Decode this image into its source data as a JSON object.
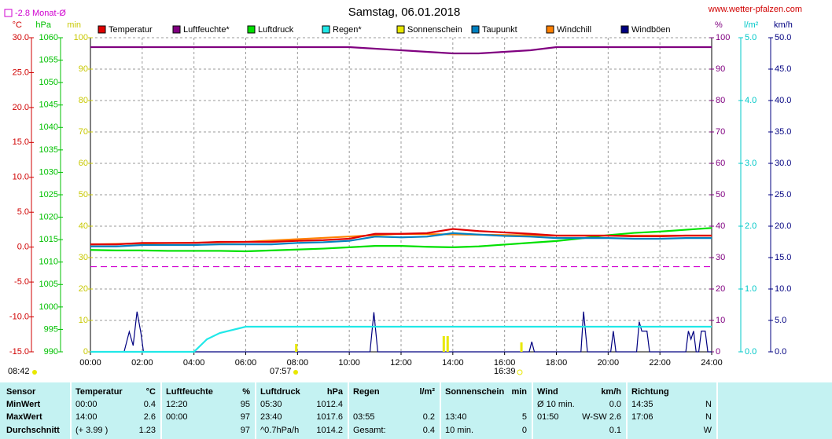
{
  "chart_data": {
    "type": "line",
    "title": "Samstag, 06.01.2018",
    "source": "www.wetter-pfalzen.com",
    "reference_line": {
      "label": "-2.8 Monat-Ø",
      "value": -2.8,
      "axis": "°C",
      "color": "#d000d0"
    },
    "xlim": [
      0,
      24
    ],
    "xticks": [
      {
        "value": 0,
        "label": "00:00"
      },
      {
        "value": 2,
        "label": "02:00"
      },
      {
        "value": 4,
        "label": "04:00"
      },
      {
        "value": 6,
        "label": "06:00"
      },
      {
        "value": 8,
        "label": "08:00"
      },
      {
        "value": 10,
        "label": "10:00"
      },
      {
        "value": 12,
        "label": "12:00"
      },
      {
        "value": 14,
        "label": "14:00"
      },
      {
        "value": 16,
        "label": "16:00"
      },
      {
        "value": 18,
        "label": "18:00"
      },
      {
        "value": 20,
        "label": "20:00"
      },
      {
        "value": 22,
        "label": "22:00"
      },
      {
        "value": 24,
        "label": "24:00"
      }
    ],
    "grid": true,
    "grid_axis": "%",
    "sun_times": [
      "08:42",
      "07:57",
      "16:39"
    ],
    "axes": [
      {
        "unit": "°C",
        "color": "#d00000",
        "ylim": [
          -15,
          30
        ],
        "yticks": [
          {
            "value": -15,
            "label": "-15.0"
          },
          {
            "value": -10,
            "label": "-10.0"
          },
          {
            "value": -5,
            "label": "-5.0"
          },
          {
            "value": 0,
            "label": "0.0"
          },
          {
            "value": 5,
            "label": "5.0"
          },
          {
            "value": 10,
            "label": "10.0"
          },
          {
            "value": 15,
            "label": "15.0"
          },
          {
            "value": 20,
            "label": "20.0"
          },
          {
            "value": 25,
            "label": "25.0"
          },
          {
            "value": 30,
            "label": "30.0"
          }
        ]
      },
      {
        "unit": "hPa",
        "color": "#00c000",
        "ylim": [
          990,
          1060
        ],
        "yticks": [
          990,
          995,
          1000,
          1005,
          1010,
          1015,
          1020,
          1025,
          1030,
          1035,
          1040,
          1045,
          1050,
          1055,
          1060
        ]
      },
      {
        "unit": "min",
        "color": "#c8c800",
        "ylim": [
          0,
          100
        ],
        "yticks": [
          0,
          10,
          20,
          30,
          40,
          50,
          60,
          70,
          80,
          90,
          100
        ]
      },
      {
        "unit": "%",
        "color": "#800080",
        "ylim": [
          0,
          100
        ],
        "yticks": [
          0,
          10,
          20,
          30,
          40,
          50,
          60,
          70,
          80,
          90,
          100
        ]
      },
      {
        "unit": "l/m²",
        "color": "#00c8c8",
        "ylim": [
          0,
          5
        ],
        "yticks": [
          {
            "value": 0,
            "label": "0.0"
          },
          {
            "value": 1,
            "label": "1.0"
          },
          {
            "value": 2,
            "label": "2.0"
          },
          {
            "value": 3,
            "label": "3.0"
          },
          {
            "value": 4,
            "label": "4.0"
          },
          {
            "value": 5,
            "label": "5.0"
          }
        ]
      },
      {
        "unit": "km/h",
        "color": "#000080",
        "ylim": [
          0,
          50
        ],
        "yticks": [
          {
            "value": 0,
            "label": "0.0"
          },
          {
            "value": 5,
            "label": "5.0"
          },
          {
            "value": 10,
            "label": "10.0"
          },
          {
            "value": 15,
            "label": "15.0"
          },
          {
            "value": 20,
            "label": "20.0"
          },
          {
            "value": 25,
            "label": "25.0"
          },
          {
            "value": 30,
            "label": "30.0"
          },
          {
            "value": 35,
            "label": "35.0"
          },
          {
            "value": 40,
            "label": "40.0"
          },
          {
            "value": 45,
            "label": "45.0"
          },
          {
            "value": 50,
            "label": "50.0"
          }
        ]
      }
    ],
    "series": [
      {
        "name": "Temperatur",
        "color": "#e00000",
        "axis": "°C",
        "type": "line",
        "x": [
          0,
          1,
          2,
          3,
          4,
          5,
          6,
          7,
          8,
          9,
          10,
          11,
          12,
          13,
          14,
          15,
          16,
          17,
          18,
          19,
          20,
          21,
          22,
          23,
          24
        ],
        "values": [
          0.4,
          0.4,
          0.6,
          0.6,
          0.6,
          0.75,
          0.75,
          0.75,
          0.9,
          1.0,
          1.2,
          1.9,
          1.9,
          2.0,
          2.6,
          2.3,
          2.1,
          1.9,
          1.65,
          1.65,
          1.65,
          1.55,
          1.55,
          1.65,
          1.65
        ]
      },
      {
        "name": "Luftfeuchte*",
        "color": "#800080",
        "axis": "%",
        "type": "line",
        "x": [
          0,
          1,
          2,
          3,
          4,
          5,
          6,
          7,
          8,
          9,
          10,
          11,
          12,
          13,
          14,
          15,
          16,
          17,
          18,
          19,
          20,
          21,
          22,
          23,
          24
        ],
        "values": [
          97,
          97,
          97,
          97,
          97,
          97,
          97,
          97,
          97,
          97,
          97,
          96.5,
          96,
          95.5,
          95,
          95,
          95.5,
          96,
          97,
          97,
          97,
          97,
          97,
          97,
          97
        ]
      },
      {
        "name": "Luftdruck",
        "color": "#00e000",
        "axis": "hPa",
        "type": "line",
        "x": [
          0,
          1,
          2,
          3,
          4,
          5,
          6,
          7,
          8,
          9,
          10,
          11,
          12,
          13,
          14,
          15,
          16,
          17,
          18,
          19,
          20,
          21,
          22,
          23,
          24
        ],
        "values": [
          1012.7,
          1012.6,
          1012.6,
          1012.5,
          1012.5,
          1012.5,
          1012.4,
          1012.6,
          1012.8,
          1013.0,
          1013.3,
          1013.6,
          1013.6,
          1013.4,
          1013.3,
          1013.5,
          1013.9,
          1014.3,
          1014.7,
          1015.3,
          1016.0,
          1016.5,
          1016.8,
          1017.2,
          1017.6
        ]
      },
      {
        "name": "Regen*",
        "color": "#20e8e8",
        "axis": "l/m²",
        "type": "line",
        "x": [
          0,
          4,
          4.5,
          5,
          6,
          24
        ],
        "values": [
          0,
          0,
          0.2,
          0.3,
          0.4,
          0.4
        ]
      },
      {
        "name": "Sonnenschein",
        "color": "#e8e800",
        "axis": "min",
        "type": "bar",
        "x": [
          7.95,
          13.65,
          13.8,
          16.65
        ],
        "values": [
          2.5,
          5,
          5,
          3
        ]
      },
      {
        "name": "Taupunkt",
        "color": "#0080c0",
        "axis": "°C",
        "type": "line",
        "x": [
          0,
          1,
          2,
          3,
          4,
          5,
          6,
          7,
          8,
          9,
          10,
          11,
          12,
          13,
          14,
          15,
          16,
          17,
          18,
          19,
          20,
          21,
          22,
          23,
          24
        ],
        "values": [
          0.1,
          0.1,
          0.3,
          0.3,
          0.3,
          0.4,
          0.4,
          0.4,
          0.6,
          0.7,
          0.9,
          1.5,
          1.4,
          1.5,
          2.0,
          1.8,
          1.6,
          1.5,
          1.3,
          1.3,
          1.3,
          1.2,
          1.2,
          1.3,
          1.3
        ]
      },
      {
        "name": "Windchill",
        "color": "#ff8000",
        "axis": "°C",
        "type": "line",
        "x": [
          0,
          6,
          12,
          18,
          24
        ],
        "values": [
          0.4,
          0.75,
          1.9,
          1.65,
          1.65
        ]
      },
      {
        "name": "Windböen",
        "color": "#000080",
        "axis": "km/h",
        "type": "line",
        "x": [
          0,
          1.3,
          1.5,
          1.65,
          1.8,
          1.95,
          2.05,
          10.8,
          10.95,
          11.1,
          16.95,
          17.05,
          17.15,
          18.95,
          19.05,
          19.2,
          20.1,
          20.2,
          20.3,
          21.1,
          21.2,
          21.3,
          21.5,
          21.6,
          23.0,
          23.1,
          23.2,
          23.3,
          23.4,
          23.5,
          23.6,
          23.75,
          23.85,
          24
        ],
        "values": [
          0,
          0,
          3.2,
          1.0,
          6.4,
          3.0,
          0,
          0,
          6.3,
          0,
          0,
          1.6,
          0,
          0,
          6.4,
          0,
          0,
          3.3,
          0,
          0,
          4.8,
          3.3,
          3.3,
          0,
          0,
          3.3,
          2.0,
          3.3,
          0,
          0,
          3.3,
          3.3,
          0,
          0
        ]
      }
    ]
  },
  "table": {
    "header": {
      "label": "Sensor",
      "temperatur": {
        "left": "Temperatur",
        "right": "°C"
      },
      "luftfeuchte": {
        "left": "Luftfeuchte",
        "right": "%"
      },
      "luftdruck": {
        "left": "Luftdruck",
        "right": "hPa"
      },
      "regen": {
        "left": "Regen",
        "right": "l/m²"
      },
      "sonne": {
        "left": "Sonnenschein",
        "right": "min"
      },
      "wind": {
        "left": "Wind",
        "right": "km/h"
      },
      "richtung": {
        "left": "Richtung"
      }
    },
    "rows": [
      {
        "label": "MinWert",
        "temperatur": {
          "left": "00:00",
          "right": "0.4"
        },
        "luftfeuchte": {
          "left": "12:20",
          "right": "95"
        },
        "luftdruck": {
          "left": "05:30",
          "right": "1012.4"
        },
        "wind": {
          "left": "Ø 10 min.",
          "right": "0.0"
        },
        "richtung": {
          "left": "14:35",
          "right": "N"
        }
      },
      {
        "label": "MaxWert",
        "temperatur": {
          "left": "14:00",
          "right": "2.6"
        },
        "luftfeuchte": {
          "left": "00:00",
          "right": "97"
        },
        "luftdruck": {
          "left": "23:40",
          "right": "1017.6"
        },
        "regen": {
          "left": "03:55",
          "right": "0.2"
        },
        "sonne": {
          "left": "13:40",
          "right": "5"
        },
        "wind": {
          "left": "01:50",
          "right": "W-SW 2.6"
        },
        "richtung": {
          "left": "17:06",
          "right": "N"
        }
      },
      {
        "label": "Durchschnitt",
        "temperatur": {
          "left": "(+ 3.99 )",
          "right": "1.23"
        },
        "luftfeuchte": {
          "right": "97"
        },
        "luftdruck": {
          "left": "^0.7hPa/h",
          "right": "1014.2"
        },
        "regen": {
          "left": "Gesamt:",
          "right": "0.4"
        },
        "sonne": {
          "left": "10 min.",
          "right": "0"
        },
        "wind": {
          "right": "0.1"
        },
        "richtung": {
          "right": "W"
        }
      }
    ]
  }
}
